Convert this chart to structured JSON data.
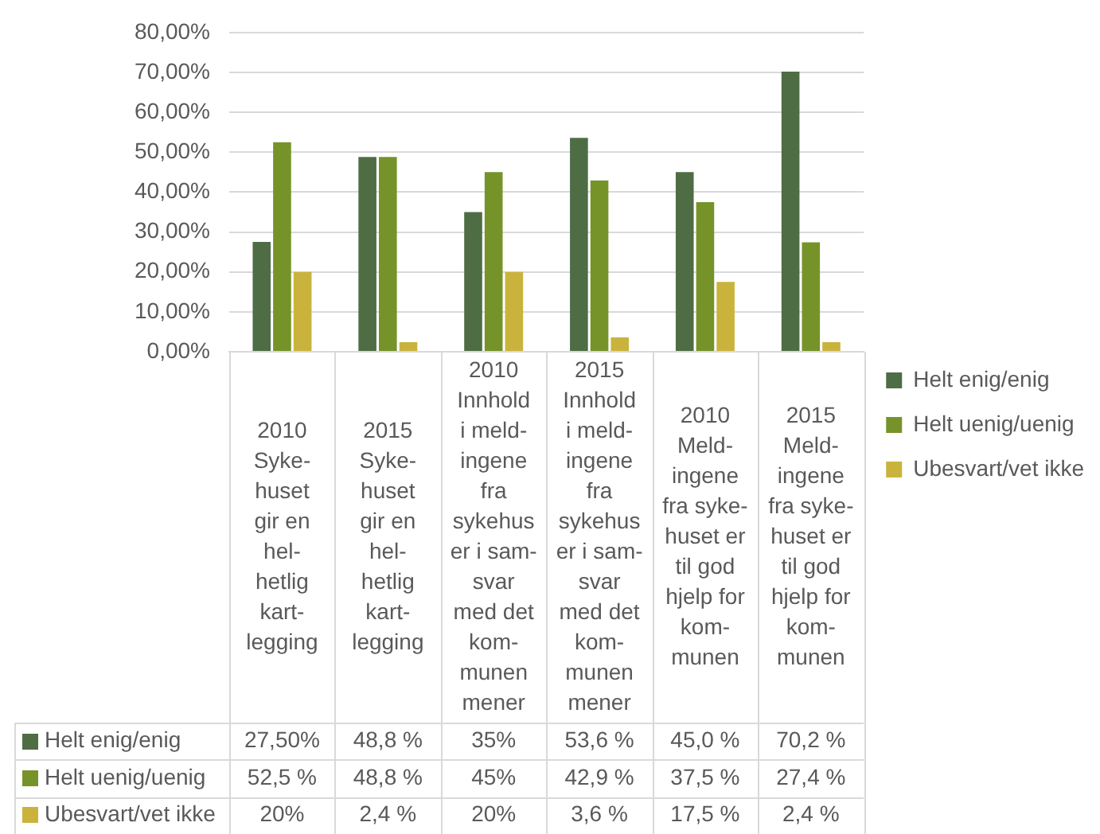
{
  "chart_data": {
    "type": "bar",
    "categories": [
      "2010\nSyke-\nhuset\ngir en\nhel-\nhetlig\nkart-\nlegging",
      "2015\nSyke-\nhuset\ngir en\nhel-\nhetlig\nkart-\nlegging",
      "2010\nInnhold\ni meld-\ningene\nfra\nsykehus\ner i sam-\nsvar\nmed det\nkom-\nmunen\nmener",
      "2015\nInnhold\ni meld-\ningene\nfra\nsykehus\ner i sam-\nsvar\nmed det\nkom-\nmunen\nmener",
      "2010\nMeld-\ningene\nfra syke-\nhuset er\ntil god\nhjelp for\nkom-\nmunen",
      "2015\nMeld-\ningene\nfra syke-\nhuset er\ntil god\nhjelp for\nkom-\nmunen"
    ],
    "series": [
      {
        "name": "Helt enig/enig",
        "color": "#4f6d45",
        "values": [
          27.5,
          48.8,
          35,
          53.6,
          45.0,
          70.2
        ],
        "value_labels": [
          "27,50%",
          "48,8 %",
          "35%",
          "53,6 %",
          "45,0 %",
          "70,2 %"
        ]
      },
      {
        "name": "Helt uenig/uenig",
        "color": "#76932a",
        "values": [
          52.5,
          48.8,
          45,
          42.9,
          37.5,
          27.4
        ],
        "value_labels": [
          "52,5 %",
          "48,8 %",
          "45%",
          "42,9 %",
          "37,5 %",
          "27,4 %"
        ]
      },
      {
        "name": "Ubesvart/vet ikke",
        "color": "#c9b33c",
        "values": [
          20,
          2.4,
          20,
          3.6,
          17.5,
          2.4
        ],
        "value_labels": [
          "20%",
          "2,4 %",
          "20%",
          "3,6 %",
          "17,5 %",
          "2,4 %"
        ]
      }
    ],
    "ylim": [
      0,
      80
    ],
    "yticks": [
      {
        "value": 0,
        "label": "0,00%"
      },
      {
        "value": 10,
        "label": "10,00%"
      },
      {
        "value": 20,
        "label": "20,00%"
      },
      {
        "value": 30,
        "label": "30,00%"
      },
      {
        "value": 40,
        "label": "40,00%"
      },
      {
        "value": 50,
        "label": "50,00%"
      },
      {
        "value": 60,
        "label": "60,00%"
      },
      {
        "value": 70,
        "label": "70,00%"
      },
      {
        "value": 80,
        "label": "80,00%"
      }
    ],
    "grid": "y",
    "legend": "right"
  }
}
